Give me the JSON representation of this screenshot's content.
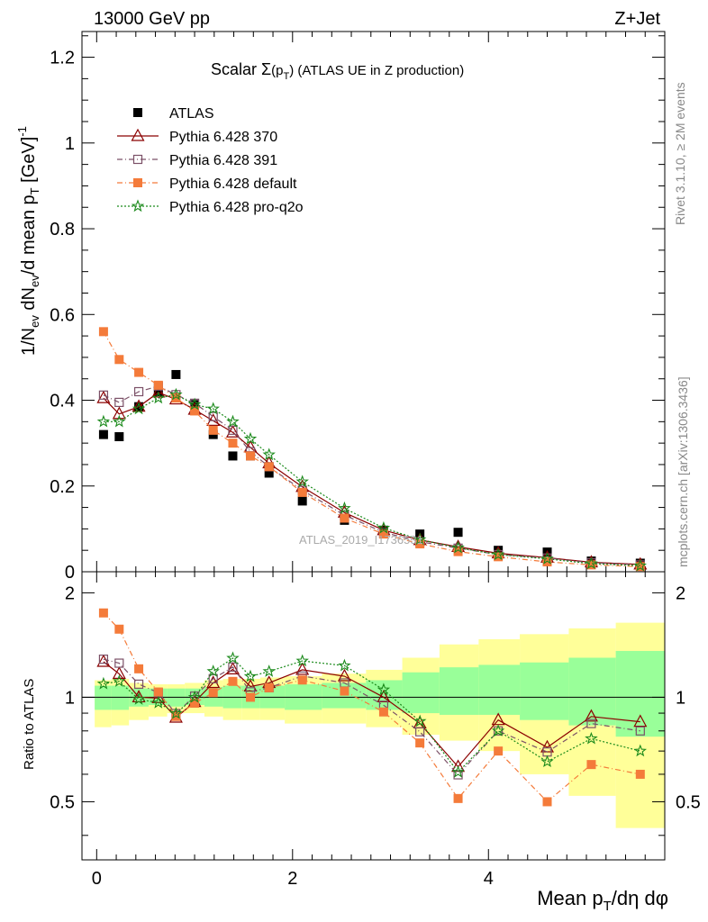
{
  "header": {
    "left": "13000 GeV pp",
    "right": "Z+Jet"
  },
  "side_labels": {
    "rivet": "Rivet 3.1.10, ≥ 2M events",
    "mcplots": "mcplots.cern.ch [arXiv:1306.3436]"
  },
  "watermark": "ATLAS_2019_I1736531",
  "chart_data": {
    "type": "scatter",
    "title": "Scalar Σ(p_T) (ATLAS UE in Z production)",
    "title_parts": {
      "pre": "Scalar Σ",
      "paren_open": "(p",
      "sub": "T",
      "post": ")  (ATLAS UE in Z production)"
    },
    "xlabel": "Mean p_T/dη dφ",
    "xlabel_parts": {
      "pre": "Mean p",
      "sub": "T",
      "post": "/dη dφ"
    },
    "ylabel": "1/N_ev dN_ev/d mean p_T [GeV]^-1",
    "ylabel_parts": {
      "a": "1/N",
      "a_sub": "ev",
      "b": " dN",
      "b_sub": "ev",
      "c": "/d mean p",
      "c_sub": "T",
      "d": " [GeV]",
      "d_sup": "-1"
    },
    "ratio_ylabel": "Ratio to ATLAS",
    "xlim": [
      -0.15,
      5.8
    ],
    "ylim": [
      0,
      1.26
    ],
    "ratio_ylim": [
      0.34,
      2.3
    ],
    "x_ticks": [
      0,
      2,
      4
    ],
    "x_tick_labels": [
      "0",
      "2",
      "4"
    ],
    "y_ticks": [
      0,
      0.2,
      0.4,
      0.6,
      0.8,
      1,
      1.2
    ],
    "y_tick_labels": [
      "0",
      "0.2",
      "0.4",
      "0.6",
      "0.8",
      "1",
      "1.2"
    ],
    "ratio_ticks": [
      0.5,
      1,
      2
    ],
    "ratio_tick_labels": [
      "0.5",
      "1",
      "2"
    ],
    "x": [
      0.07,
      0.23,
      0.43,
      0.63,
      0.81,
      1.0,
      1.19,
      1.39,
      1.57,
      1.76,
      2.1,
      2.53,
      2.93,
      3.3,
      3.69,
      4.1,
      4.6,
      5.05,
      5.55
    ],
    "edges": [
      -0.02,
      0.15,
      0.33,
      0.53,
      0.72,
      0.9,
      1.1,
      1.29,
      1.48,
      1.67,
      1.92,
      2.3,
      2.75,
      3.12,
      3.5,
      3.9,
      4.32,
      4.82,
      5.3,
      5.8
    ],
    "band_stat_lo": [
      0.92,
      0.92,
      0.94,
      0.95,
      0.94,
      0.95,
      0.94,
      0.93,
      0.93,
      0.93,
      0.92,
      0.93,
      0.92,
      0.9,
      0.89,
      0.89,
      0.86,
      0.83,
      0.77
    ],
    "band_stat_hi": [
      1.08,
      1.08,
      1.06,
      1.06,
      1.06,
      1.06,
      1.07,
      1.08,
      1.08,
      1.08,
      1.09,
      1.1,
      1.12,
      1.18,
      1.22,
      1.24,
      1.26,
      1.3,
      1.36
    ],
    "band_sys_lo": [
      0.82,
      0.83,
      0.86,
      0.88,
      0.9,
      0.9,
      0.88,
      0.86,
      0.86,
      0.86,
      0.84,
      0.84,
      0.82,
      0.78,
      0.75,
      0.7,
      0.6,
      0.52,
      0.42
    ],
    "band_sys_hi": [
      1.12,
      1.13,
      1.1,
      1.09,
      1.09,
      1.1,
      1.12,
      1.13,
      1.13,
      1.14,
      1.15,
      1.17,
      1.2,
      1.3,
      1.42,
      1.47,
      1.52,
      1.58,
      1.64
    ],
    "series": [
      {
        "name": "ATLAS",
        "color": "#000000",
        "marker": "square-filled",
        "line": "none",
        "values": [
          0.32,
          0.315,
          0.385,
          0.42,
          0.46,
          0.39,
          0.32,
          0.27,
          0.27,
          0.23,
          0.165,
          0.12,
          0.097,
          0.088,
          0.092,
          0.05,
          0.046,
          0.025,
          0.02
        ]
      },
      {
        "name": "Pythia 6.428 370",
        "color": "#8b0000",
        "marker": "triangle-open",
        "line": "solid",
        "values": [
          0.405,
          0.368,
          0.385,
          0.418,
          0.402,
          0.378,
          0.352,
          0.325,
          0.29,
          0.253,
          0.198,
          0.138,
          0.097,
          0.074,
          0.058,
          0.043,
          0.033,
          0.022,
          0.017
        ]
      },
      {
        "name": "Pythia 6.428 391",
        "color": "#7b5067",
        "marker": "square-open",
        "line": "dashdot",
        "values": [
          0.412,
          0.395,
          0.42,
          0.433,
          0.413,
          0.393,
          0.362,
          0.33,
          0.28,
          0.245,
          0.19,
          0.132,
          0.092,
          0.07,
          0.055,
          0.04,
          0.032,
          0.021,
          0.016
        ]
      },
      {
        "name": "Pythia 6.428 default",
        "color": "#f47b3a",
        "marker": "square-filled",
        "line": "dashdot",
        "values": [
          0.56,
          0.495,
          0.465,
          0.435,
          0.405,
          0.375,
          0.33,
          0.3,
          0.27,
          0.245,
          0.185,
          0.125,
          0.088,
          0.065,
          0.047,
          0.035,
          0.023,
          0.016,
          0.012
        ]
      },
      {
        "name": "Pythia 6.428 pro-q2o",
        "color": "#1b8a1b",
        "marker": "star",
        "line": "dotted",
        "values": [
          0.35,
          0.35,
          0.38,
          0.405,
          0.413,
          0.39,
          0.38,
          0.35,
          0.31,
          0.273,
          0.21,
          0.148,
          0.102,
          0.075,
          0.056,
          0.04,
          0.03,
          0.019,
          0.014
        ]
      }
    ]
  }
}
